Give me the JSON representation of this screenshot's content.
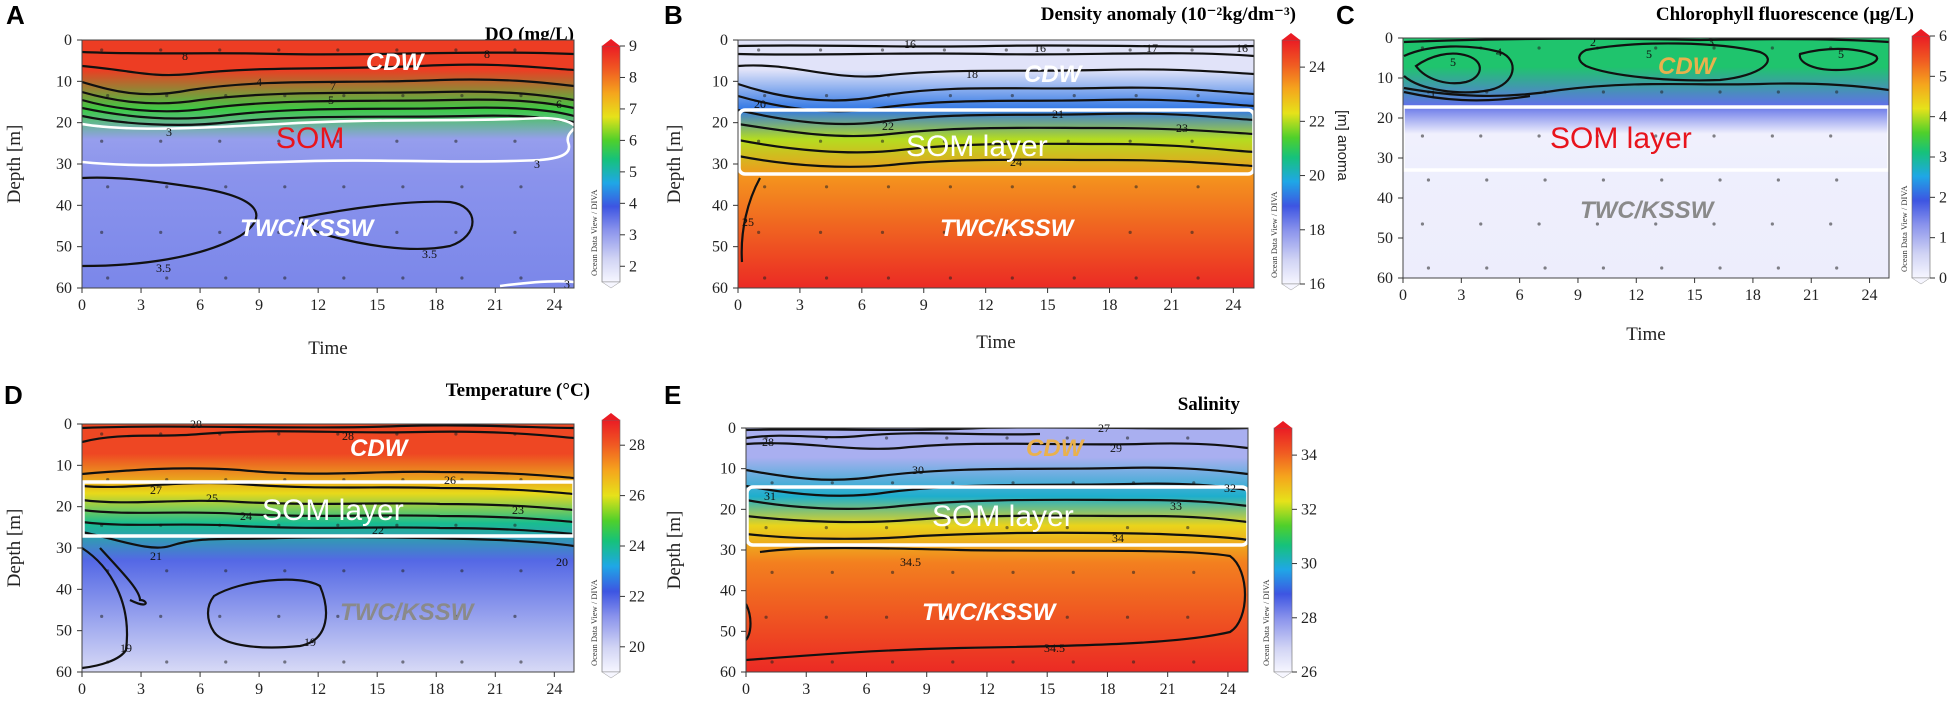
{
  "chart_data": [
    {
      "letter": "A",
      "title": "DO (mg/L)",
      "type": "heatmap",
      "xlabel": "Time",
      "ylabel": "Depth [m]",
      "xlim": [
        0,
        25
      ],
      "ylim": [
        0,
        60
      ],
      "xticks": [
        "0",
        "3",
        "6",
        "9",
        "12",
        "15",
        "18",
        "21",
        "24"
      ],
      "yticks": [
        "0",
        "10",
        "20",
        "30",
        "40",
        "50",
        "60"
      ],
      "colorbar": {
        "min": 1.5,
        "max": 9,
        "ticks": [
          "2",
          "3",
          "4",
          "5",
          "6",
          "7",
          "8",
          "9"
        ],
        "credit": "Ocean Data View / DIVA",
        "palette": "odv"
      },
      "field": {
        "surface": 8.6,
        "mid": 3.0,
        "deep": 3.3
      },
      "contours": [
        "8",
        "8",
        "7",
        "6",
        "5",
        "4",
        "3",
        "3.5",
        "3.5",
        "3",
        "3"
      ],
      "annotations": [
        {
          "text": "CDW",
          "color": "#ffffff"
        },
        {
          "text": "SOM",
          "color": "#e8141c"
        },
        {
          "text": "TWC/KSSW",
          "color": "#ffffff"
        }
      ],
      "som_box": false
    },
    {
      "letter": "B",
      "title": "Density anomaly (10⁻²kg/dm⁻³)",
      "type": "heatmap",
      "xlabel": "Time",
      "ylabel": "Depth [m]",
      "xlim": [
        0,
        25
      ],
      "ylim": [
        0,
        60
      ],
      "xticks": [
        "0",
        "3",
        "6",
        "9",
        "12",
        "15",
        "18",
        "21",
        "24"
      ],
      "yticks": [
        "0",
        "10",
        "20",
        "30",
        "40",
        "50",
        "60"
      ],
      "colorbar": {
        "min": 16,
        "max": 25,
        "ticks": [
          "16",
          "18",
          "20",
          "22",
          "24"
        ],
        "credit": "Ocean Data View / DIVA",
        "palette": "odv"
      },
      "field": {
        "surface": 16.5,
        "mid": 22.0,
        "deep": 24.8
      },
      "contours": [
        "16",
        "16",
        "17",
        "16",
        "18",
        "20",
        "21",
        "22",
        "23",
        "24",
        "25"
      ],
      "ghost_label": "[m] anoma",
      "annotations": [
        {
          "text": "CDW",
          "color": "#ffffff"
        },
        {
          "text": "SOM layer",
          "color": "#ffffff"
        },
        {
          "text": "TWC/KSSW",
          "color": "#ffffff"
        }
      ],
      "som_box": true
    },
    {
      "letter": "C",
      "title": "Chlorophyll fluorescence (μg/L)",
      "type": "heatmap",
      "xlabel": "Time",
      "ylabel": "",
      "xlim": [
        0,
        25
      ],
      "ylim": [
        0,
        60
      ],
      "xticks": [
        "0",
        "3",
        "6",
        "9",
        "12",
        "15",
        "18",
        "21",
        "24"
      ],
      "yticks": [
        "0",
        "10",
        "20",
        "30",
        "40",
        "50",
        "60"
      ],
      "colorbar": {
        "min": 0,
        "max": 6,
        "ticks": [
          "0",
          "1",
          "2",
          "3",
          "4",
          "5",
          "6"
        ],
        "credit": "Ocean Data View / DIVA",
        "palette": "odv"
      },
      "field": {
        "surface": 3.2,
        "mid": 0.1,
        "deep": 0.15
      },
      "contours": [
        "5",
        "4",
        "5",
        "5",
        "2",
        "3",
        "1"
      ],
      "annotations": [
        {
          "text": "CDW",
          "color": "#e9b14d"
        },
        {
          "text": "SOM layer",
          "color": "#e8141c"
        },
        {
          "text": "TWC/KSSW",
          "color": "#8a8a8a"
        }
      ],
      "som_box": true
    },
    {
      "letter": "D",
      "title": "Temperature (°C)",
      "type": "heatmap",
      "xlabel": "",
      "ylabel": "Depth [m]",
      "xlim": [
        0,
        25
      ],
      "ylim": [
        0,
        60
      ],
      "xticks": [
        "0",
        "3",
        "6",
        "9",
        "12",
        "15",
        "18",
        "21",
        "24"
      ],
      "yticks": [
        "0",
        "10",
        "20",
        "30",
        "40",
        "50",
        "60"
      ],
      "colorbar": {
        "min": 19,
        "max": 29,
        "ticks": [
          "20",
          "22",
          "24",
          "26",
          "28"
        ],
        "credit": "Ocean Data View / DIVA",
        "palette": "odv"
      },
      "field": {
        "surface": 28.3,
        "mid": 24.0,
        "deep": 19.8
      },
      "contours": [
        "28",
        "28",
        "27",
        "26",
        "25",
        "24",
        "23",
        "22",
        "21",
        "20",
        "19",
        "19"
      ],
      "annotations": [
        {
          "text": "CDW",
          "color": "#ffffff"
        },
        {
          "text": "SOM layer",
          "color": "#ffffff"
        },
        {
          "text": "TWC/KSSW",
          "color": "#8a8a8a"
        }
      ],
      "som_box": true
    },
    {
      "letter": "E",
      "title": "Salinity",
      "type": "heatmap",
      "xlabel": "",
      "ylabel": "Depth [m]",
      "xlim": [
        0,
        25
      ],
      "ylim": [
        0,
        60
      ],
      "xticks": [
        "0",
        "3",
        "6",
        "9",
        "12",
        "15",
        "18",
        "21",
        "24"
      ],
      "yticks": [
        "0",
        "10",
        "20",
        "30",
        "40",
        "50",
        "60"
      ],
      "colorbar": {
        "min": 26,
        "max": 35,
        "ticks": [
          "26",
          "28",
          "30",
          "32",
          "34"
        ],
        "credit": "Ocean Data View / DIVA",
        "palette": "odv"
      },
      "field": {
        "surface": 27.5,
        "mid": 32.5,
        "deep": 34.8
      },
      "contours": [
        "28",
        "27",
        "29",
        "30",
        "31",
        "32",
        "33",
        "34",
        "34.5",
        "34.5"
      ],
      "annotations": [
        {
          "text": "CDW",
          "color": "#e9b14d"
        },
        {
          "text": "SOM layer",
          "color": "#ffffff"
        },
        {
          "text": "TWC/KSSW",
          "color": "#ffffff"
        }
      ],
      "som_box": true
    }
  ]
}
